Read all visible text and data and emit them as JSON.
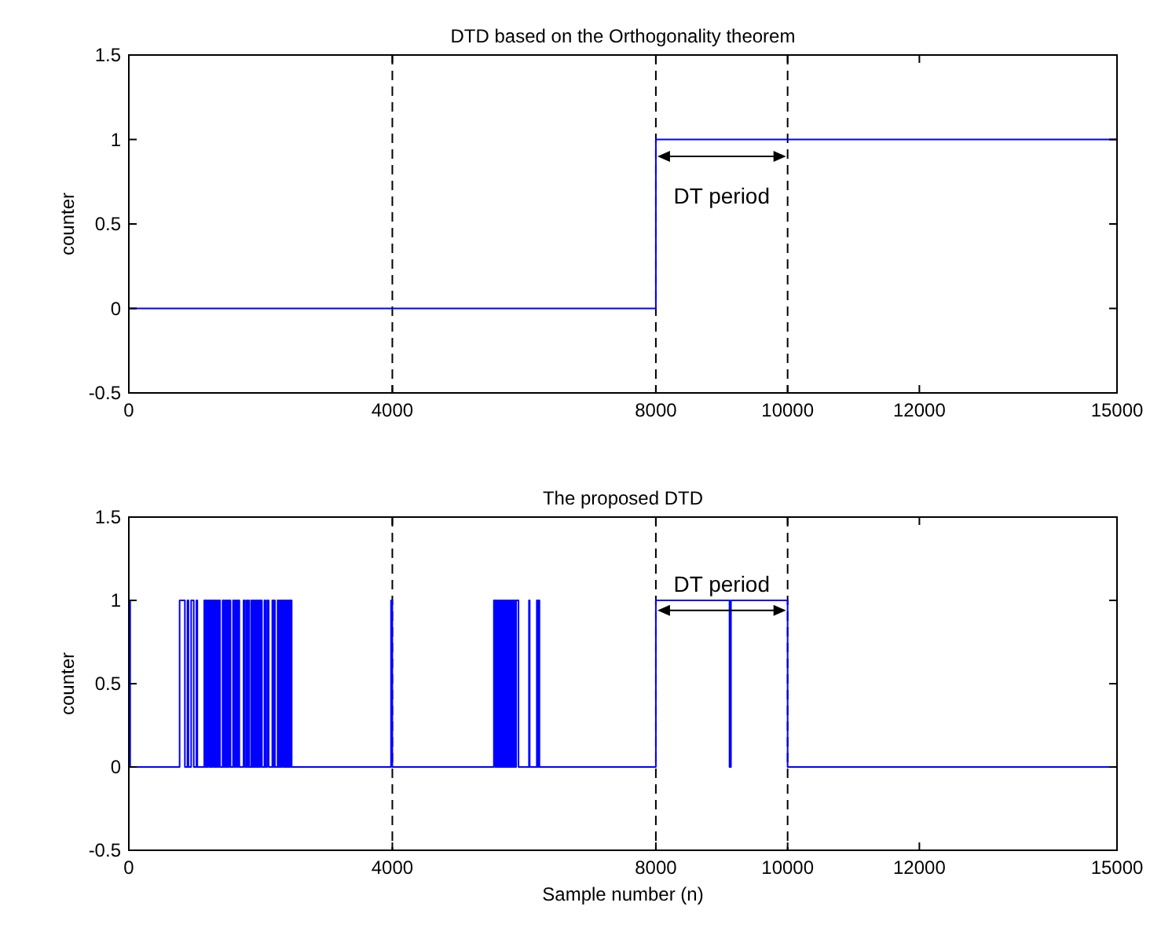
{
  "chart_data": [
    {
      "type": "step",
      "title": "DTD based on the Orthogonality theorem",
      "ylabel": "counter",
      "xlim": [
        0,
        15000
      ],
      "ylim": [
        -0.5,
        1.5
      ],
      "xticks": [
        0,
        4000,
        8000,
        10000,
        12000,
        15000
      ],
      "yticks": [
        -0.5,
        0,
        0.5,
        1,
        1.5
      ],
      "ref_lines": [
        {
          "axis": "x",
          "value": 4000,
          "color": "#000000",
          "line_style": "dashed"
        },
        {
          "axis": "x",
          "value": 8000,
          "color": "#000000",
          "line_style": "dashed"
        },
        {
          "axis": "x",
          "value": 10000,
          "color": "#000000",
          "line_style": "dashed"
        }
      ],
      "annotations": [
        "DT period"
      ],
      "series": [
        {
          "color": "#0000ff",
          "x": [
            0,
            8000,
            15000
          ],
          "values": [
            0,
            1,
            1
          ]
        }
      ]
    },
    {
      "type": "step",
      "title": "The proposed DTD",
      "xlabel": "Sample number (n)",
      "ylabel": "counter",
      "xlim": [
        0,
        15000
      ],
      "ylim": [
        -0.5,
        1.5
      ],
      "xticks": [
        0,
        4000,
        8000,
        10000,
        12000,
        15000
      ],
      "yticks": [
        -0.5,
        0,
        0.5,
        1,
        1.5
      ],
      "ref_lines": [
        {
          "axis": "x",
          "value": 4000,
          "color": "#000000",
          "line_style": "dashed"
        },
        {
          "axis": "x",
          "value": 8000,
          "color": "#000000",
          "line_style": "dashed"
        },
        {
          "axis": "x",
          "value": 10000,
          "color": "#000000",
          "line_style": "dashed"
        }
      ],
      "annotations": [
        "DT period"
      ],
      "series": [
        {
          "color": "#0000ff",
          "x": [
            0,
            20,
            771,
            851,
            890,
            905,
            946,
            986,
            1026,
            1040,
            1145,
            1160,
            1175,
            1190,
            1205,
            1225,
            1240,
            1255,
            1270,
            1290,
            1305,
            1320,
            1335,
            1350,
            1365,
            1384,
            1423,
            1440,
            1460,
            1475,
            1495,
            1510,
            1525,
            1543,
            1582,
            1600,
            1620,
            1640,
            1660,
            1678,
            1741,
            1760,
            1785,
            1800,
            1821,
            1830,
            1860,
            1875,
            1895,
            1910,
            1930,
            1945,
            1965,
            1980,
            2000,
            2020,
            2059,
            2075,
            2100,
            2123,
            2178,
            2190,
            2205,
            2218,
            2258,
            2275,
            2290,
            2305,
            2320,
            2340,
            2360,
            2375,
            2395,
            2410,
            2430,
            2445,
            2460,
            2472,
            3980,
            4000,
            5541,
            5560,
            5575,
            5590,
            5605,
            5620,
            5635,
            5650,
            5665,
            5680,
            5695,
            5710,
            5725,
            5740,
            5755,
            5770,
            5785,
            5800,
            5815,
            5830,
            5845,
            5860,
            5880,
            5915,
            6074,
            6085,
            6193,
            6205,
            6220,
            6233,
            8000,
            9118,
            9140,
            10000,
            15000
          ],
          "values": [
            1,
            0,
            1,
            0,
            1,
            0,
            1,
            0,
            1,
            0,
            1,
            0,
            1,
            0,
            1,
            0,
            1,
            0,
            1,
            0,
            1,
            0,
            1,
            0,
            1,
            0,
            1,
            0,
            1,
            0,
            1,
            0,
            1,
            0,
            1,
            0,
            1,
            0,
            1,
            0,
            1,
            0,
            1,
            0,
            1,
            0,
            1,
            0,
            1,
            0,
            1,
            0,
            1,
            0,
            1,
            0,
            1,
            0,
            1,
            0,
            1,
            0,
            1,
            0,
            1,
            0,
            1,
            0,
            1,
            0,
            1,
            0,
            1,
            0,
            1,
            0,
            1,
            0,
            1,
            0,
            1,
            0,
            1,
            0,
            1,
            0,
            1,
            0,
            1,
            0,
            1,
            0,
            1,
            0,
            1,
            0,
            1,
            0,
            1,
            0,
            1,
            0,
            1,
            0,
            1,
            0,
            1,
            0,
            1,
            0,
            1,
            0,
            1,
            0,
            0
          ]
        }
      ]
    }
  ]
}
